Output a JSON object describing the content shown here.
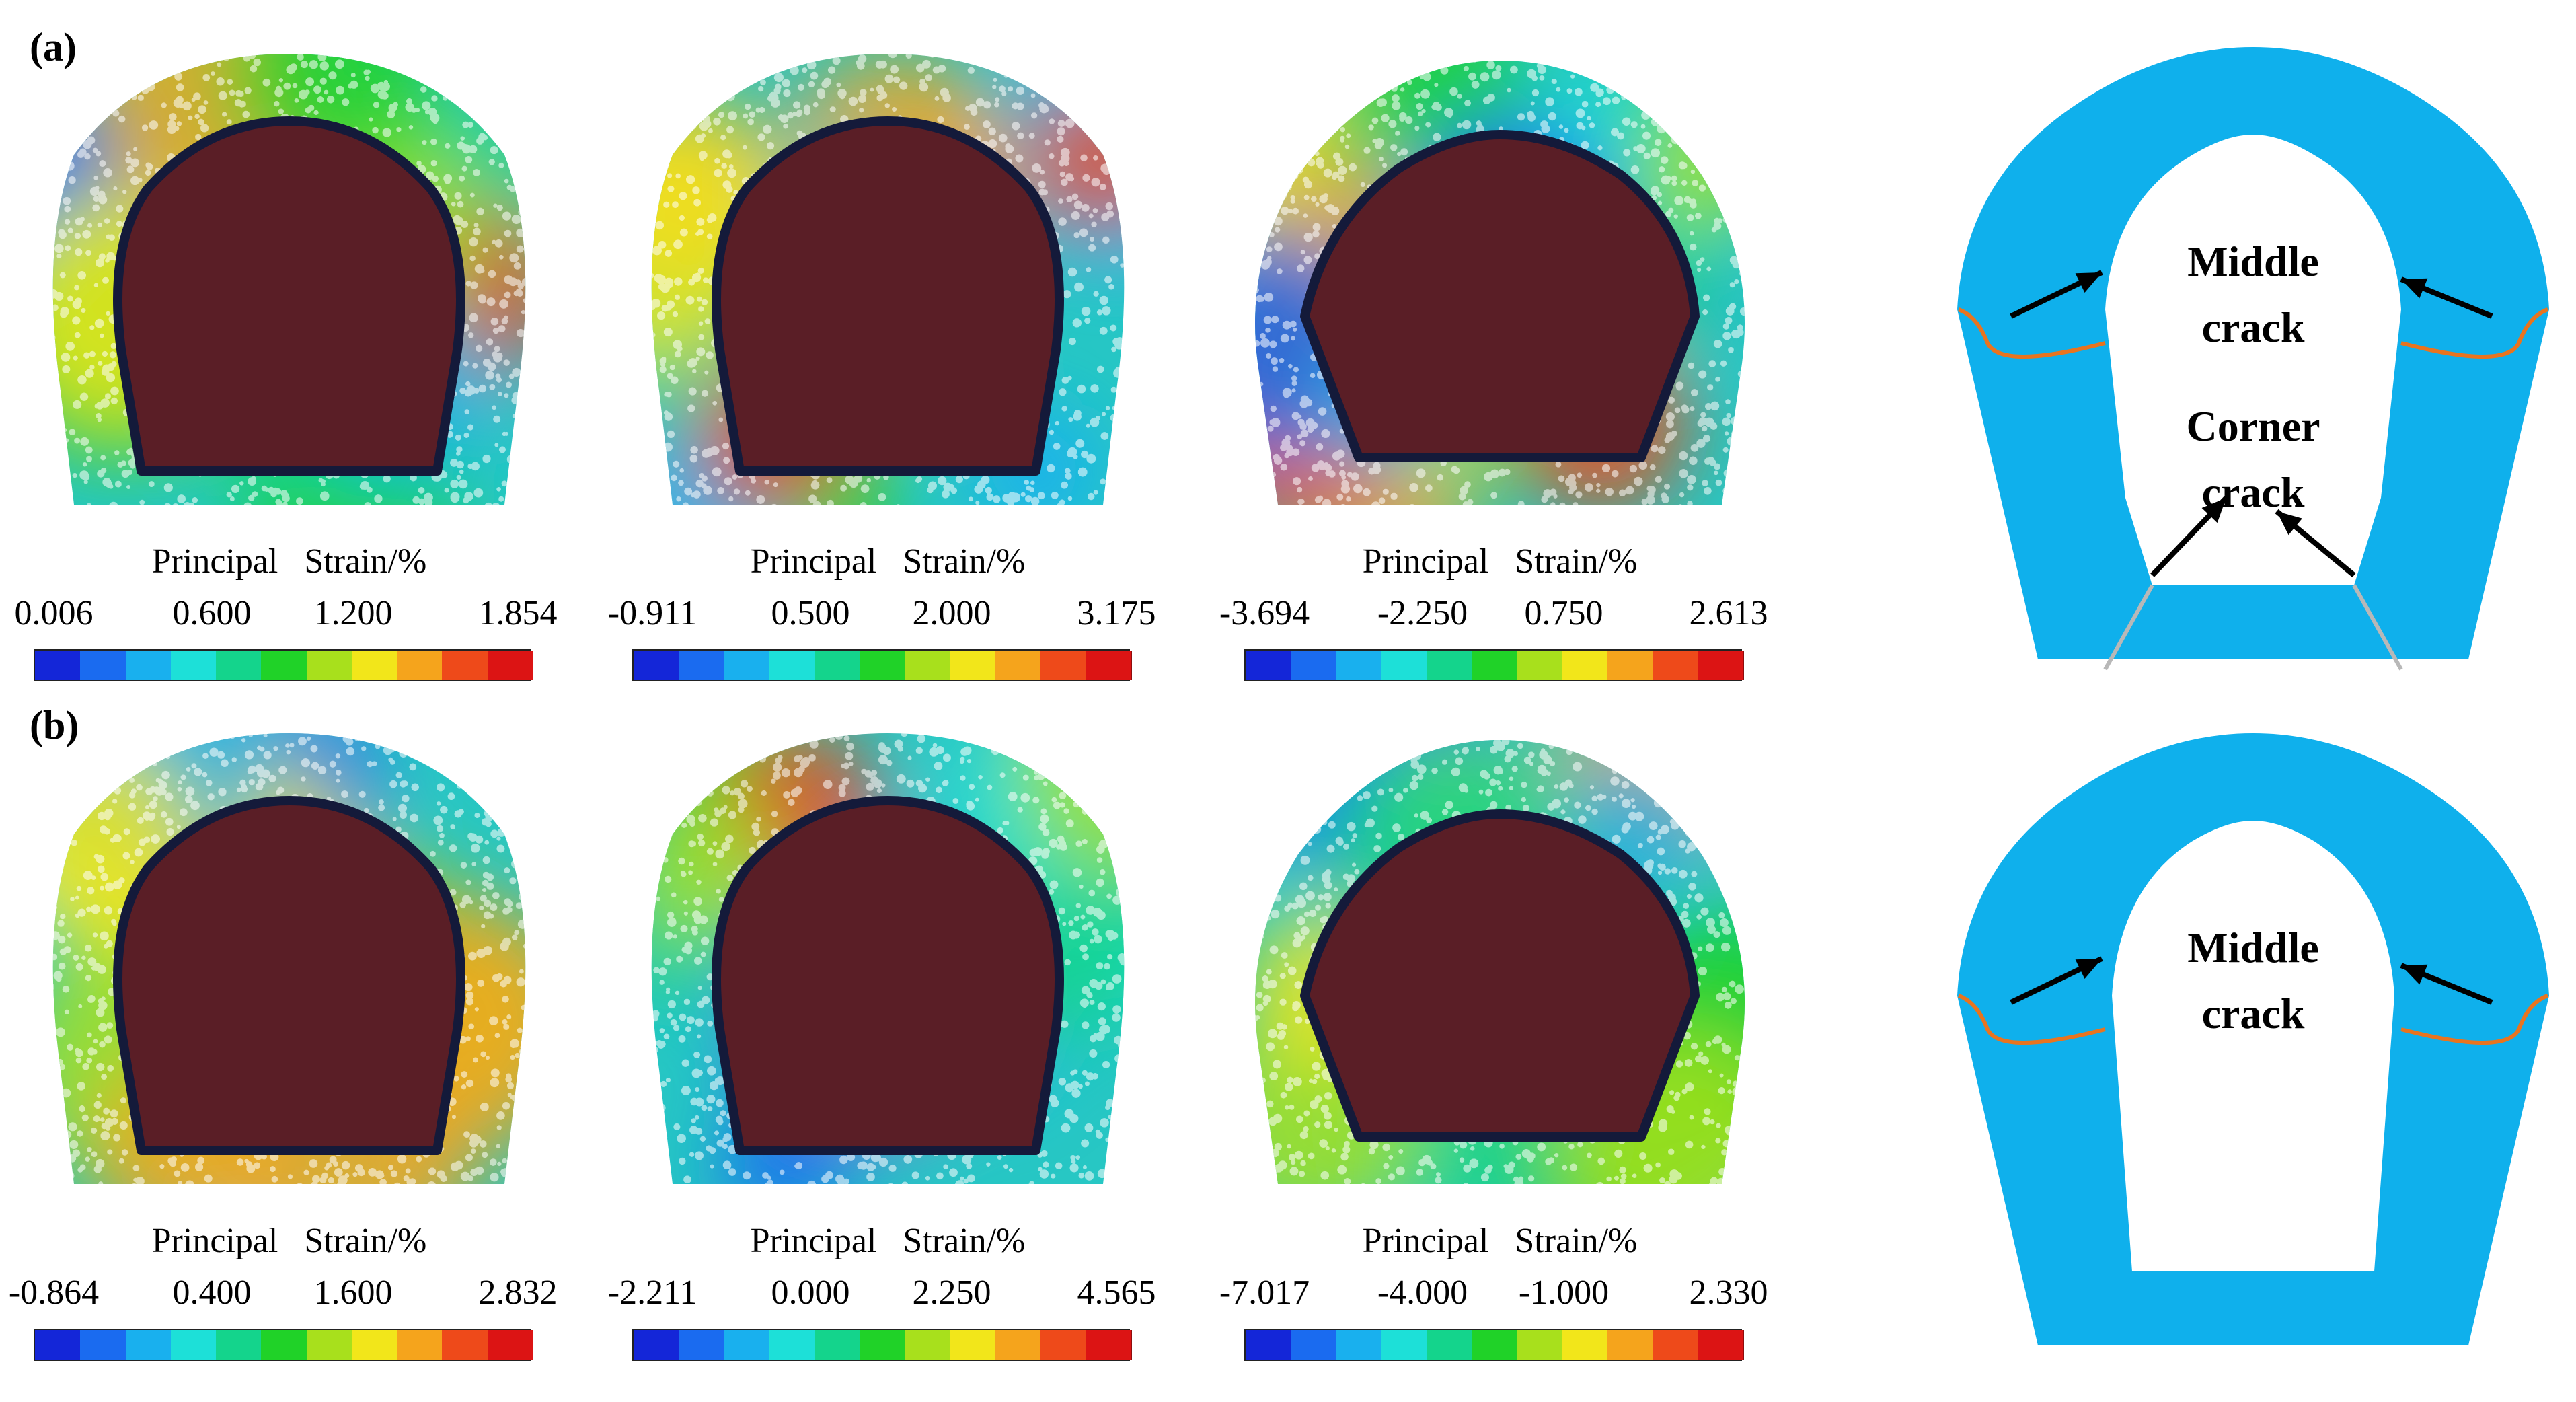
{
  "rows": [
    {
      "label": "(a)",
      "panels": [
        {
          "title": "Principal   Strain/%",
          "ticks": [
            "0.006",
            "0.600",
            "1.200",
            "1.854"
          ],
          "shape": "round"
        },
        {
          "title": "Principal   Strain/%",
          "ticks": [
            "-0.911",
            "0.500",
            "2.000",
            "3.175"
          ],
          "shape": "round"
        },
        {
          "title": "Principal   Strain/%",
          "ticks": [
            "-3.694",
            "-2.250",
            "0.750",
            "2.613"
          ],
          "shape": "wide"
        }
      ],
      "schematic": {
        "line1": "Middle",
        "line2": "crack",
        "line3": "Corner",
        "line4": "crack",
        "corner_cracks": true
      }
    },
    {
      "label": "(b)",
      "panels": [
        {
          "title": "Principal   Strain/%",
          "ticks": [
            "-0.864",
            "0.400",
            "1.600",
            "2.832"
          ],
          "shape": "round"
        },
        {
          "title": "Principal   Strain/%",
          "ticks": [
            "-2.211",
            "0.000",
            "2.250",
            "4.565"
          ],
          "shape": "round"
        },
        {
          "title": "Principal   Strain/%",
          "ticks": [
            "-7.017",
            "-4.000",
            "-1.000",
            "2.330"
          ],
          "shape": "wide"
        }
      ],
      "schematic": {
        "line1": "Middle",
        "line2": "crack",
        "corner_cracks": false
      }
    }
  ],
  "colors": {
    "lining": "#0fb0ec",
    "crack": "#e8741f",
    "corner_line": "#b8b8b8",
    "cavity": "#5a1e26",
    "colormap": [
      "#1426d8",
      "#1a6bf0",
      "#19b0ee",
      "#1de0d8",
      "#14d48c",
      "#20d228",
      "#a8e01c",
      "#f2e61a",
      "#f5a41c",
      "#ee4a1a",
      "#dc1414"
    ]
  }
}
